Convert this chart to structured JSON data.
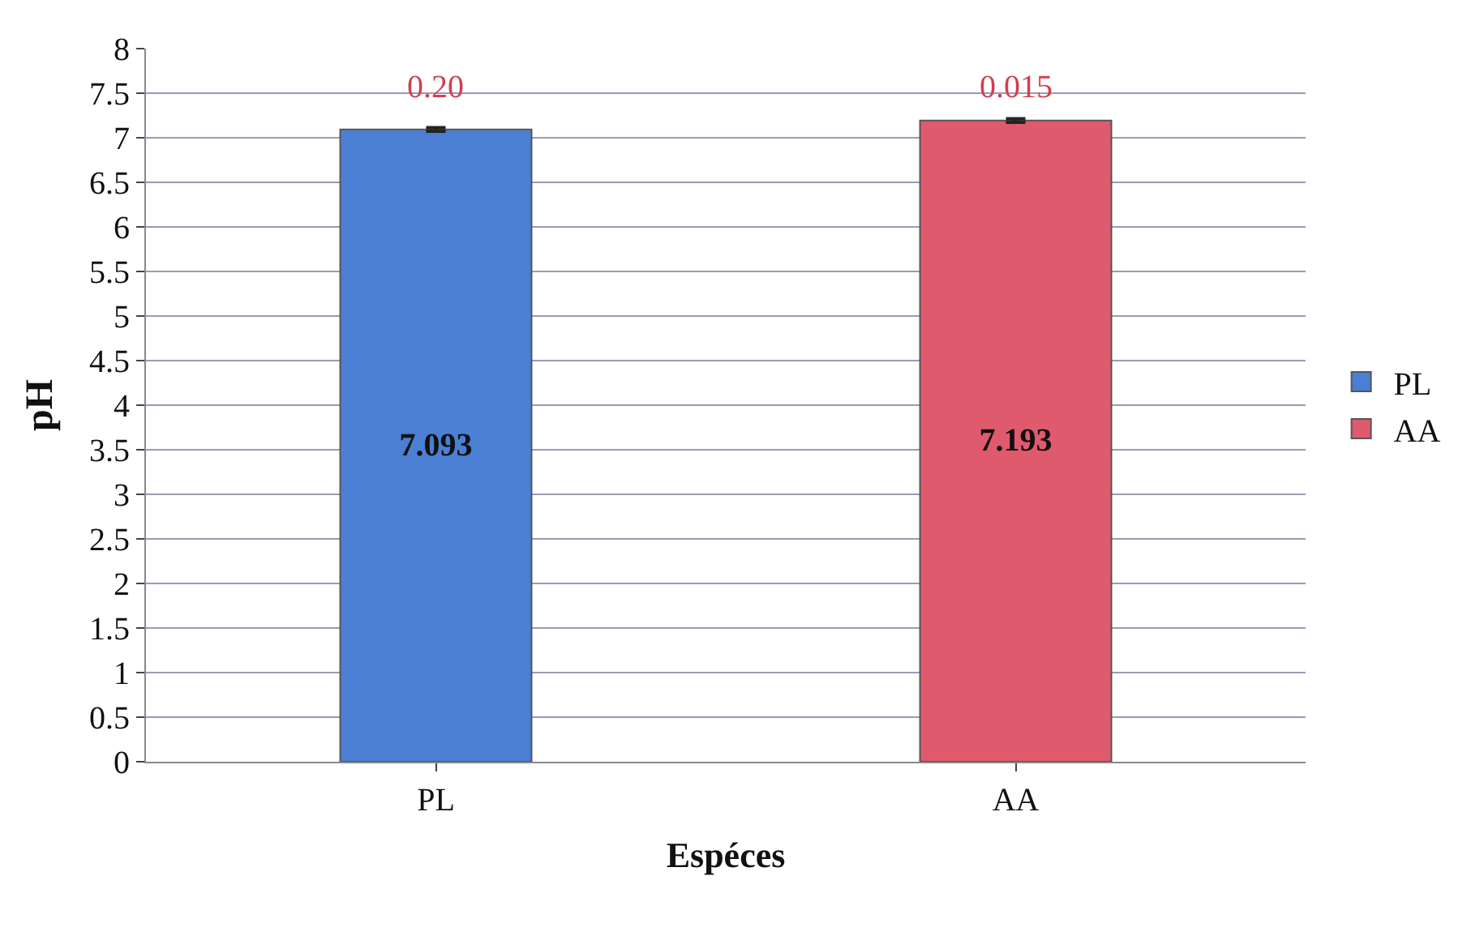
{
  "chart_data": {
    "type": "bar",
    "xlabel": "Espéces",
    "ylabel": "pH",
    "categories": [
      "PL",
      "AA"
    ],
    "series": [
      {
        "name": "PL",
        "color": "#4a7fd4",
        "values": [
          7.093,
          null
        ],
        "errors": [
          0.02,
          null
        ]
      },
      {
        "name": "AA",
        "color": "#e05a6e",
        "values": [
          null,
          7.193
        ],
        "errors": [
          null,
          0.02
        ]
      }
    ],
    "annotations": [
      "0.20",
      "0.015"
    ],
    "ylim": [
      0,
      8
    ],
    "yticks": [
      0,
      {
        "value": 0.5,
        "label": "0.5"
      },
      1,
      {
        "value": 1.5,
        "label": "1.5"
      },
      2,
      {
        "value": 2.5,
        "label": "2.5"
      },
      3,
      {
        "value": 3.5,
        "label": "3.5"
      },
      4,
      {
        "value": 4.5,
        "label": "4.5"
      },
      5,
      {
        "value": 5.5,
        "label": "5.5"
      },
      6,
      {
        "value": 6.5,
        "label": "6.5"
      },
      7,
      {
        "value": 7.5,
        "label": "7.5"
      },
      8
    ],
    "grid": "y",
    "legend": "right",
    "data_labels": true
  }
}
